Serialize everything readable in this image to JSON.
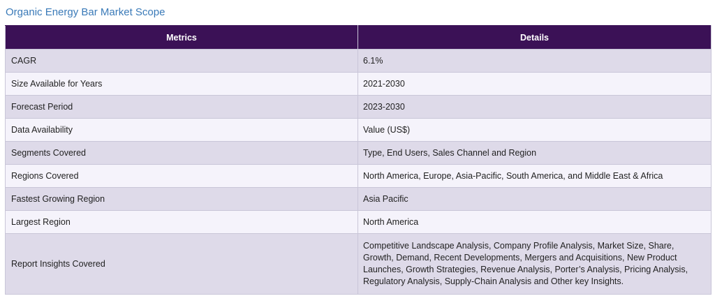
{
  "page": {
    "title": "Organic Energy Bar Market Scope"
  },
  "table": {
    "headers": [
      "Metrics",
      "Details"
    ],
    "rows": [
      {
        "metric": "CAGR",
        "detail": "6.1%"
      },
      {
        "metric": "Size Available for Years",
        "detail": "2021-2030"
      },
      {
        "metric": "Forecast Period",
        "detail": "2023-2030"
      },
      {
        "metric": "Data Availability",
        "detail": "Value (US$)"
      },
      {
        "metric": "Segments Covered",
        "detail": "Type, End Users, Sales Channel and Region"
      },
      {
        "metric": "Regions Covered",
        "detail": "North America, Europe, Asia-Pacific, South America, and Middle East & Africa"
      },
      {
        "metric": "Fastest Growing Region",
        "detail": "Asia Pacific"
      },
      {
        "metric": "Largest Region",
        "detail": "North America"
      },
      {
        "metric": "Report Insights Covered",
        "detail": "Competitive Landscape Analysis, Company Profile Analysis, Market Size, Share, Growth, Demand, Recent Developments, Mergers and Acquisitions, New Product Launches, Growth Strategies, Revenue Analysis, Porter’s Analysis, Pricing Analysis, Regulatory Analysis, Supply-Chain Analysis and Other key Insights."
      }
    ]
  },
  "colors": {
    "header_bg": "#3b1156",
    "title": "#3a7ab8",
    "row_odd": "#dedae9",
    "row_even": "#f5f3fb"
  }
}
